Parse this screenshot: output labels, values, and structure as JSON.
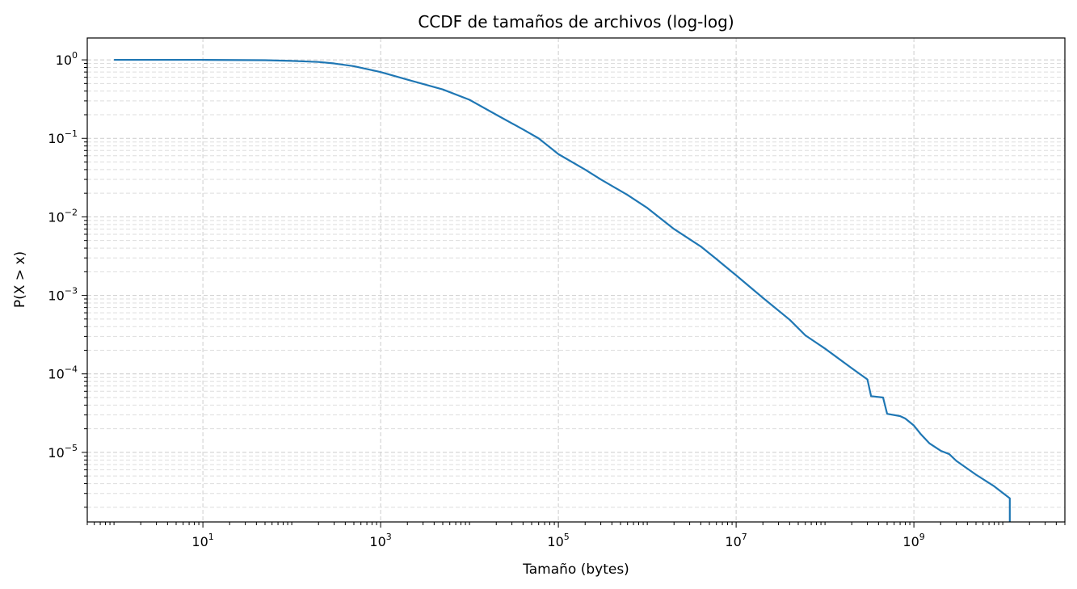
{
  "chart_data": {
    "type": "line",
    "title": "CCDF de tamaños de archivos (log-log)",
    "xlabel": "Tamaño (bytes)",
    "ylabel": "P(X > x)",
    "xscale": "log",
    "yscale": "log",
    "xlim": [
      0.5,
      50000000000
    ],
    "ylim": [
      1.3e-06,
      1.9
    ],
    "grid": "both (major and minor, dashed)",
    "line_color": "#1f77b4",
    "x_ticks": [
      {
        "value": 10,
        "base": "10",
        "exp": "1"
      },
      {
        "value": 1000,
        "base": "10",
        "exp": "3"
      },
      {
        "value": 100000,
        "base": "10",
        "exp": "5"
      },
      {
        "value": 10000000,
        "base": "10",
        "exp": "7"
      },
      {
        "value": 1000000000,
        "base": "10",
        "exp": "9"
      }
    ],
    "y_ticks": [
      {
        "value": 1,
        "base": "10",
        "exp": "0"
      },
      {
        "value": 0.1,
        "base": "10",
        "exp": "−1"
      },
      {
        "value": 0.01,
        "base": "10",
        "exp": "−2"
      },
      {
        "value": 0.001,
        "base": "10",
        "exp": "−3"
      },
      {
        "value": 0.0001,
        "base": "10",
        "exp": "−4"
      },
      {
        "value": 1e-05,
        "base": "10",
        "exp": "−5"
      }
    ],
    "series": [
      {
        "x": [
          1,
          10,
          50,
          100,
          200,
          300,
          500,
          1000,
          2000,
          5000,
          10000,
          20000,
          40000,
          60000,
          100000,
          200000,
          300000,
          600000,
          1000000,
          2000000,
          4000000,
          6000000,
          10000000,
          20000000,
          40000000,
          60000000,
          100000000,
          200000000,
          300000000,
          330000000,
          450000000,
          500000000,
          700000000,
          800000000,
          1000000000,
          1200000000,
          1500000000,
          2000000000,
          2500000000,
          3000000000,
          5000000000,
          8000000000,
          12000000000,
          12000000000
        ],
        "y": [
          1,
          1,
          0.99,
          0.97,
          0.94,
          0.9,
          0.83,
          0.7,
          0.56,
          0.42,
          0.31,
          0.2,
          0.13,
          0.1,
          0.063,
          0.04,
          0.03,
          0.019,
          0.013,
          0.007,
          0.0042,
          0.0029,
          0.0018,
          0.00093,
          0.00049,
          0.00031,
          0.00021,
          0.000118,
          8.5e-05,
          5.2e-05,
          5e-05,
          3.1e-05,
          2.9e-05,
          2.7e-05,
          2.2e-05,
          1.7e-05,
          1.3e-05,
          1.05e-05,
          9.5e-06,
          7.8e-06,
          5.2e-06,
          3.7e-06,
          2.6e-06,
          1.3e-06
        ]
      }
    ]
  }
}
